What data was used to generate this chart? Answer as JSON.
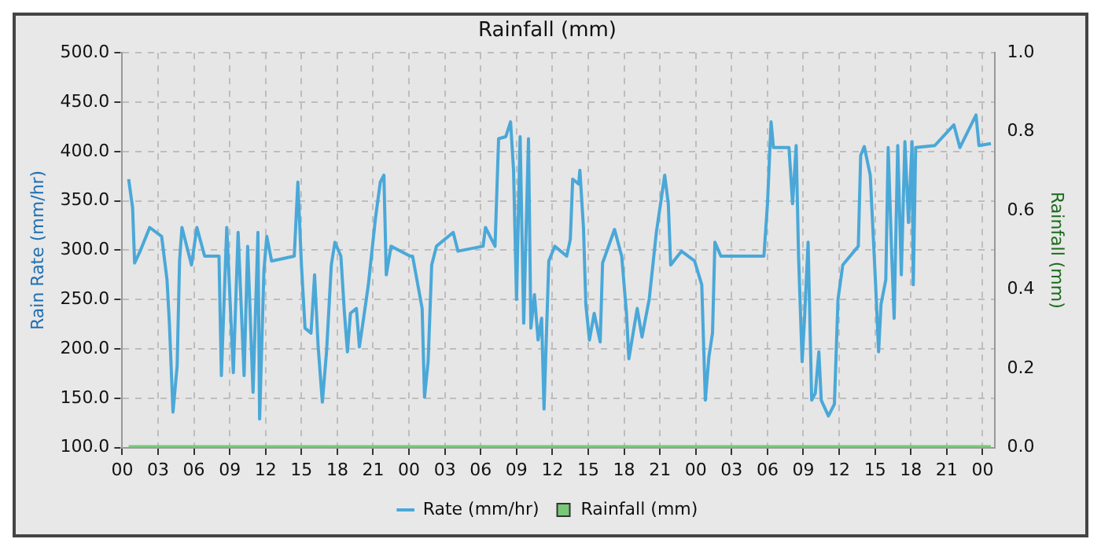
{
  "chart_data": {
    "type": "line",
    "title": "Rainfall (mm)",
    "ylabel": "Rain Rate (mm/hr)",
    "y2label": "Rainfall (mm)",
    "xlim": [
      0,
      73
    ],
    "xticks": [
      {
        "value": 0,
        "label": "00"
      },
      {
        "value": 3,
        "label": "03"
      },
      {
        "value": 6,
        "label": "06"
      },
      {
        "value": 9,
        "label": "09"
      },
      {
        "value": 12,
        "label": "12"
      },
      {
        "value": 15,
        "label": "15"
      },
      {
        "value": 18,
        "label": "18"
      },
      {
        "value": 21,
        "label": "21"
      },
      {
        "value": 24,
        "label": "00"
      },
      {
        "value": 27,
        "label": "03"
      },
      {
        "value": 30,
        "label": "06"
      },
      {
        "value": 33,
        "label": "09"
      },
      {
        "value": 36,
        "label": "12"
      },
      {
        "value": 39,
        "label": "15"
      },
      {
        "value": 42,
        "label": "18"
      },
      {
        "value": 45,
        "label": "21"
      },
      {
        "value": 48,
        "label": "00"
      },
      {
        "value": 51,
        "label": "03"
      },
      {
        "value": 54,
        "label": "06"
      },
      {
        "value": 57,
        "label": "09"
      },
      {
        "value": 60,
        "label": "12"
      },
      {
        "value": 63,
        "label": "15"
      },
      {
        "value": 66,
        "label": "18"
      },
      {
        "value": 69,
        "label": "21"
      },
      {
        "value": 72,
        "label": "00"
      }
    ],
    "ylim": [
      100,
      500
    ],
    "yticks": [
      {
        "value": 100,
        "label": "100.0"
      },
      {
        "value": 150,
        "label": "150.0"
      },
      {
        "value": 200,
        "label": "200.0"
      },
      {
        "value": 250,
        "label": "250.0"
      },
      {
        "value": 300,
        "label": "300.0"
      },
      {
        "value": 350,
        "label": "350.0"
      },
      {
        "value": 400,
        "label": "400.0"
      },
      {
        "value": 450,
        "label": "450.0"
      },
      {
        "value": 500,
        "label": "500.0"
      }
    ],
    "y2lim": [
      0,
      1
    ],
    "y2ticks": [
      {
        "value": 0,
        "label": "0.0"
      },
      {
        "value": 0.2,
        "label": "0.2"
      },
      {
        "value": 0.4,
        "label": "0.4"
      },
      {
        "value": 0.6,
        "label": "0.6"
      },
      {
        "value": 0.8,
        "label": "0.8"
      },
      {
        "value": 1,
        "label": "1.0"
      }
    ],
    "grid": true,
    "legend": "bottom",
    "marker": "none",
    "line_style": "solid",
    "series": [
      {
        "name": "Rate (mm/hr)",
        "color": "#4aa8d8",
        "x": [
          0.54,
          0.87,
          1.04,
          1.5,
          2.3,
          3.3,
          3.75,
          3.95,
          4.25,
          4.6,
          4.8,
          5.0,
          5.8,
          6.25,
          6.9,
          8.1,
          8.3,
          8.75,
          9.3,
          9.7,
          10.2,
          10.5,
          10.95,
          11.36,
          11.5,
          11.86,
          12.1,
          12.5,
          14.4,
          14.7,
          15.0,
          15.3,
          15.8,
          16.1,
          16.4,
          16.75,
          17.1,
          17.5,
          17.8,
          18.3,
          18.6,
          18.85,
          19.1,
          19.6,
          19.85,
          20.2,
          20.6,
          21.2,
          21.6,
          21.9,
          22.1,
          22.5,
          24.1,
          24.3,
          25.1,
          25.3,
          25.6,
          25.9,
          26.3,
          27.7,
          28.1,
          30.2,
          30.4,
          31.2,
          31.5,
          32.1,
          32.5,
          32.75,
          33.0,
          33.3,
          33.6,
          34.0,
          34.2,
          34.5,
          34.8,
          35.1,
          35.3,
          35.7,
          36.2,
          37.2,
          37.5,
          37.7,
          38.2,
          38.3,
          38.6,
          38.8,
          39.1,
          39.5,
          40.0,
          40.2,
          41.2,
          41.8,
          42.2,
          42.4,
          43.1,
          43.5,
          44.1,
          44.7,
          45.4,
          45.7,
          45.9,
          46.8,
          47.9,
          48.5,
          48.8,
          49.1,
          49.4,
          49.6,
          50.1,
          53.7,
          54.0,
          54.3,
          54.5,
          55.8,
          56.1,
          56.4,
          56.6,
          56.9,
          57.1,
          57.4,
          57.7,
          58.0,
          58.3,
          58.5,
          59.1,
          59.6,
          59.9,
          60.3,
          61.6,
          61.8,
          62.1,
          62.6,
          63.05,
          63.3,
          63.5,
          63.9,
          64.1,
          64.4,
          64.6,
          64.9,
          65.2,
          65.5,
          65.8,
          66.1,
          66.2,
          66.4,
          68.0,
          69.6,
          70.1,
          71.45,
          71.7,
          72.7
        ],
        "values": [
          372,
          343,
          287,
          299,
          323,
          314,
          270,
          226,
          136,
          183,
          289,
          323,
          285,
          323,
          294,
          294,
          173,
          323,
          176,
          318,
          173,
          304,
          156,
          318,
          129,
          279,
          314,
          289,
          294,
          369,
          285,
          221,
          216,
          275,
          202,
          146,
          197,
          285,
          308,
          294,
          236,
          197,
          236,
          241,
          202,
          231,
          265,
          333,
          369,
          376,
          275,
          304,
          294,
          294,
          241,
          151,
          187,
          285,
          304,
          318,
          299,
          304,
          323,
          304,
          413,
          415,
          430,
          381,
          250,
          415,
          226,
          413,
          221,
          255,
          209,
          231,
          139,
          289,
          304,
          294,
          311,
          372,
          367,
          381,
          323,
          245,
          209,
          236,
          207,
          287,
          321,
          294,
          236,
          190,
          241,
          212,
          250,
          318,
          376,
          347,
          285,
          299,
          289,
          265,
          148,
          192,
          216,
          308,
          294,
          294,
          347,
          430,
          404,
          404,
          347,
          406,
          294,
          187,
          231,
          308,
          148,
          155,
          197,
          148,
          132,
          144,
          250,
          285,
          304,
          396,
          405,
          376,
          265,
          197,
          245,
          270,
          404,
          294,
          231,
          406,
          275,
          410,
          328,
          410,
          265,
          404,
          406,
          427,
          404,
          437,
          406,
          408
        ]
      },
      {
        "name": "Rainfall (mm)",
        "color": "#78c878",
        "axis": "y2",
        "type": "bar",
        "x": [
          0.54,
          72.7
        ],
        "values": [
          0,
          0
        ]
      }
    ]
  }
}
